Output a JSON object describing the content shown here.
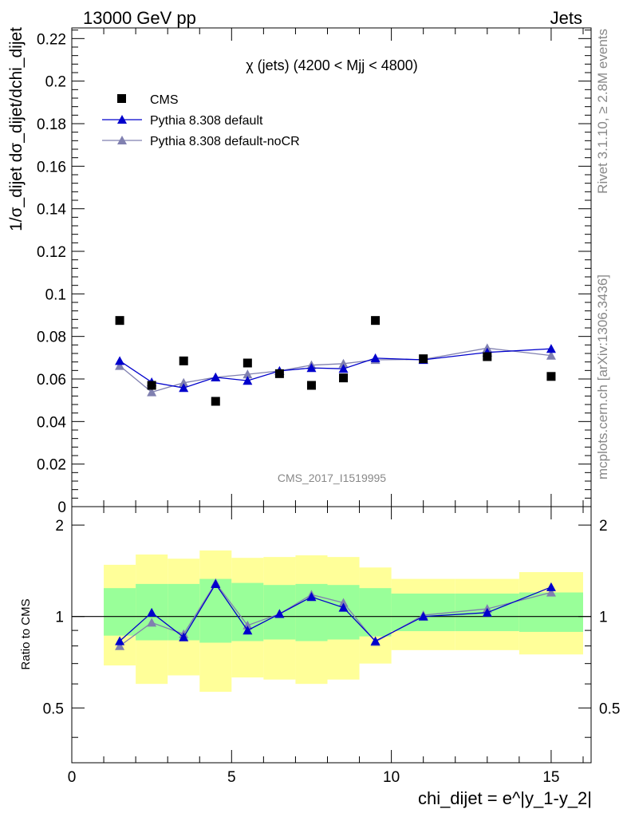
{
  "header": {
    "left": "13000 GeV pp",
    "right": "Jets"
  },
  "side_labels": {
    "rivet": "Rivet 3.1.10, ≥ 2.8M events",
    "mcplots": "mcplots.cern.ch [arXiv:1306.3436]"
  },
  "chart_data": {
    "type": "scatter",
    "title": "χ (jets) (4200 < Mjj < 4800)",
    "watermark": "CMS_2017_I1519995",
    "xlabel": "chi_dijet = e^|y_1-y_2|",
    "ylabel": "1/σ_dijet dσ_dijet/dchi_dijet",
    "ratio_ylabel": "Ratio to CMS",
    "xlim": [
      0,
      16.25
    ],
    "ylim": [
      0,
      0.225
    ],
    "ratio_ylim": [
      0.33,
      2.3
    ],
    "x_ticks": [
      0,
      5,
      10,
      15
    ],
    "y_ticks": [
      0,
      0.02,
      0.04,
      0.06,
      0.08,
      0.1,
      0.12,
      0.14,
      0.16,
      0.18,
      0.2,
      0.22
    ],
    "y_tick_labels": [
      "0",
      "0.02",
      "0.04",
      "0.06",
      "0.08",
      "0.1",
      "0.12",
      "0.14",
      "0.16",
      "0.18",
      "0.2",
      "0.22"
    ],
    "ratio_ticks": [
      0.5,
      1,
      2
    ],
    "legend_position": "top-left",
    "bins": [
      {
        "lo": 1,
        "hi": 2
      },
      {
        "lo": 2,
        "hi": 3
      },
      {
        "lo": 3,
        "hi": 4
      },
      {
        "lo": 4,
        "hi": 5
      },
      {
        "lo": 5,
        "hi": 6
      },
      {
        "lo": 6,
        "hi": 7
      },
      {
        "lo": 7,
        "hi": 8
      },
      {
        "lo": 8,
        "hi": 9
      },
      {
        "lo": 9,
        "hi": 10
      },
      {
        "lo": 10,
        "hi": 12
      },
      {
        "lo": 12,
        "hi": 14
      },
      {
        "lo": 14,
        "hi": 16
      }
    ],
    "x": [
      1.5,
      2.5,
      3.5,
      4.5,
      5.5,
      6.5,
      7.5,
      8.5,
      9.5,
      11,
      13,
      15
    ],
    "series": [
      {
        "name": "CMS",
        "color": "#000000",
        "marker": "square",
        "values": [
          0.0875,
          0.057,
          0.0685,
          0.0495,
          0.0675,
          0.0625,
          0.057,
          0.0605,
          0.0875,
          0.0695,
          0.0705,
          0.0612
        ]
      },
      {
        "name": "Pythia 8.308 default",
        "color": "#0000cc",
        "marker": "triangle",
        "values": [
          0.0685,
          0.0585,
          0.0558,
          0.0608,
          0.0592,
          0.0638,
          0.0652,
          0.0648,
          0.0698,
          0.069,
          0.0725,
          0.0742
        ],
        "ratio": [
          0.83,
          1.03,
          0.855,
          1.28,
          0.9,
          1.02,
          1.16,
          1.07,
          0.83,
          1.0,
          1.03,
          1.25
        ]
      },
      {
        "name": "Pythia 8.308 default-noCR",
        "color": "#8080b0",
        "marker": "triangle",
        "values": [
          0.0662,
          0.0538,
          0.0582,
          0.0608,
          0.0622,
          0.0638,
          0.0665,
          0.0672,
          0.069,
          0.0692,
          0.0745,
          0.071
        ],
        "ratio": [
          0.8,
          0.955,
          0.875,
          1.29,
          0.935,
          1.02,
          1.18,
          1.11,
          0.825,
          1.01,
          1.06,
          1.2
        ]
      }
    ],
    "uncertainty_bands": {
      "inner_color": "#99ff99",
      "outer_color": "#ffff99",
      "inner": [
        [
          0.865,
          1.24
        ],
        [
          0.835,
          1.28
        ],
        [
          0.835,
          1.28
        ],
        [
          0.82,
          1.33
        ],
        [
          0.83,
          1.29
        ],
        [
          0.84,
          1.27
        ],
        [
          0.83,
          1.28
        ],
        [
          0.84,
          1.27
        ],
        [
          0.86,
          1.24
        ],
        [
          0.895,
          1.19
        ],
        [
          0.895,
          1.19
        ],
        [
          0.89,
          1.2
        ]
      ],
      "outer": [
        [
          0.69,
          1.48
        ],
        [
          0.6,
          1.6
        ],
        [
          0.64,
          1.55
        ],
        [
          0.565,
          1.65
        ],
        [
          0.63,
          1.56
        ],
        [
          0.62,
          1.57
        ],
        [
          0.6,
          1.59
        ],
        [
          0.62,
          1.57
        ],
        [
          0.7,
          1.45
        ],
        [
          0.775,
          1.33
        ],
        [
          0.775,
          1.33
        ],
        [
          0.75,
          1.4
        ]
      ]
    }
  }
}
